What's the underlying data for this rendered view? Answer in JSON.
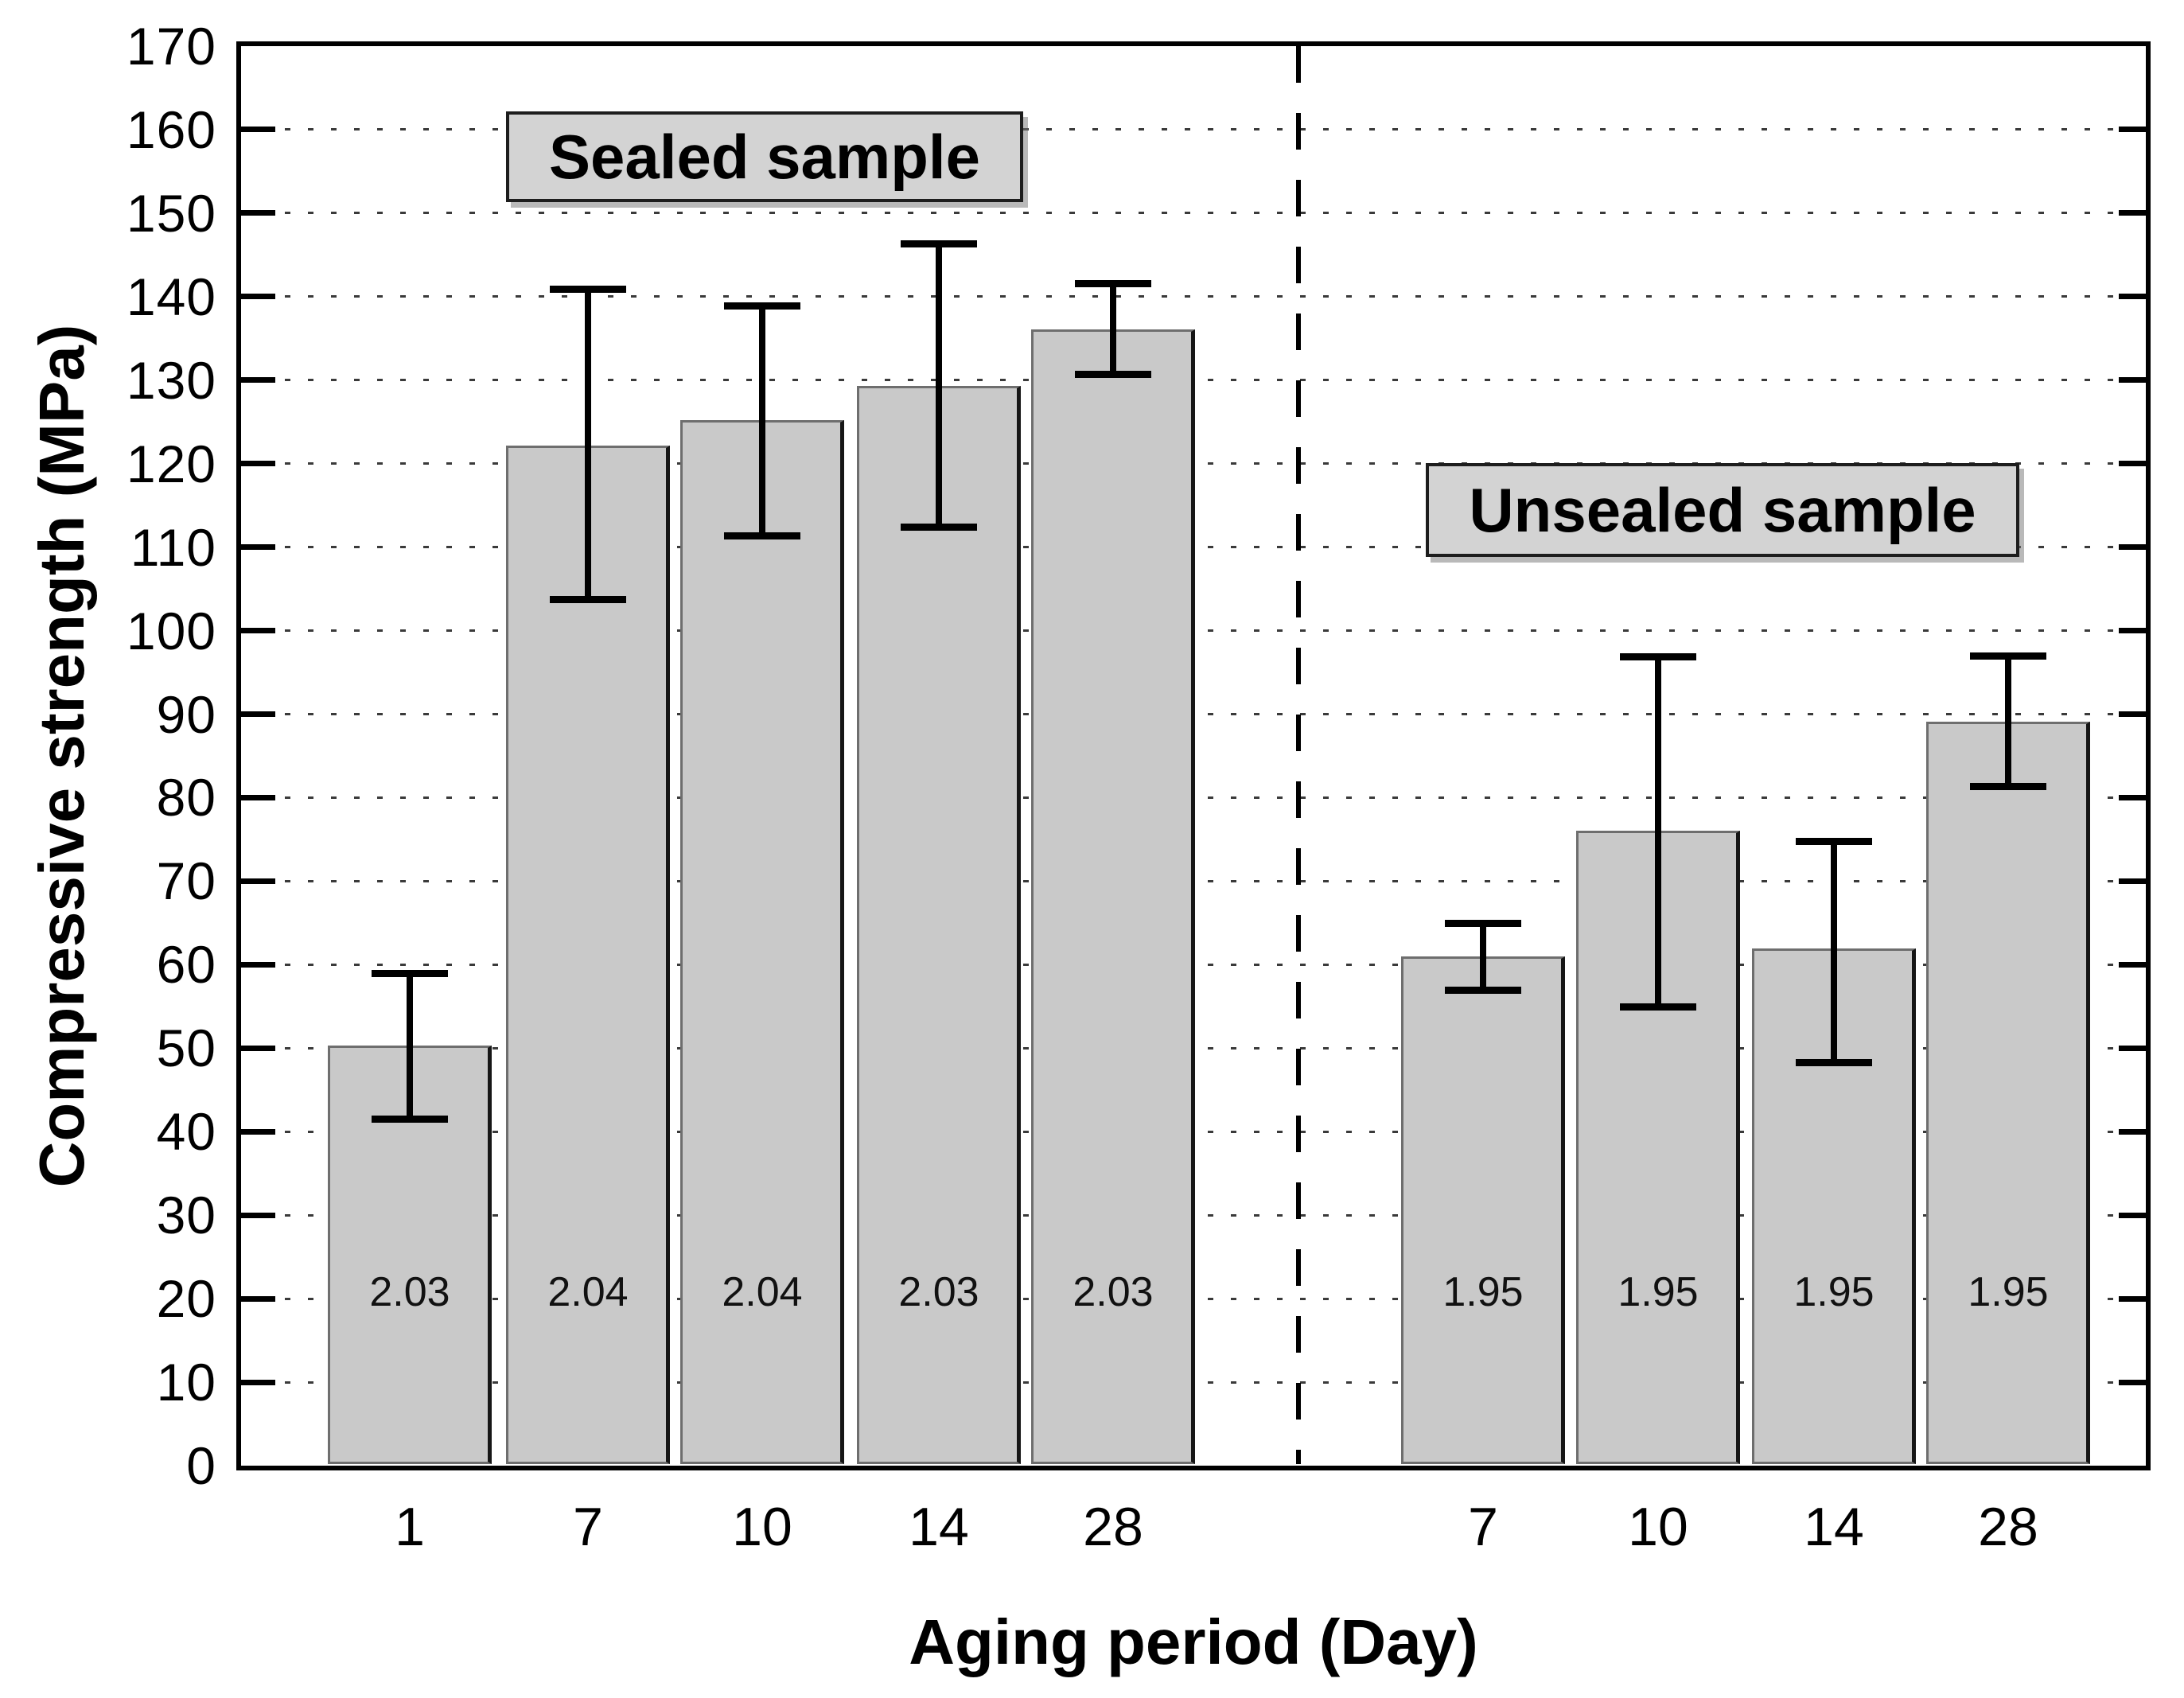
{
  "figure_background": "#ffffff",
  "chart_data": {
    "type": "bar",
    "title": "",
    "xlabel": "Aging period (Day)",
    "ylabel": "Compressive strength (MPa)",
    "ylim": [
      0,
      170
    ],
    "y_tick_step": 10,
    "grid": "horizontal dotted gridlines at every 10 MPa",
    "legend_position": "inside plot, boxed labels",
    "separator": "vertical dashed line between sealed and unsealed groups",
    "groups": [
      {
        "name": "Sealed sample",
        "categories": [
          "1",
          "7",
          "10",
          "14",
          "28"
        ],
        "values": [
          50.3,
          122.2,
          125.2,
          129.3,
          136.1
        ],
        "error_low": [
          41.5,
          103.8,
          111.4,
          112.4,
          130.7
        ],
        "error_high": [
          59.0,
          140.9,
          138.9,
          146.4,
          141.6
        ],
        "bar_labels": [
          "2.03",
          "2.04",
          "2.04",
          "2.03",
          "2.03"
        ]
      },
      {
        "name": "Unsealed sample",
        "categories": [
          "7",
          "10",
          "14",
          "28"
        ],
        "values": [
          61.0,
          76.0,
          61.9,
          89.1
        ],
        "error_low": [
          57.0,
          55.0,
          48.3,
          81.4
        ],
        "error_high": [
          65.0,
          96.9,
          74.8,
          97.0
        ],
        "bar_labels": [
          "1.95",
          "1.95",
          "1.95",
          "1.95"
        ]
      }
    ],
    "colors": {
      "bar_fill": "#c9c9c9",
      "bar_border": "#6e6e6e",
      "error_bar": "#000000",
      "legend_fill": "#d3d3d3",
      "grid_color": "#3a3a3a",
      "frame_color": "#000000"
    }
  }
}
